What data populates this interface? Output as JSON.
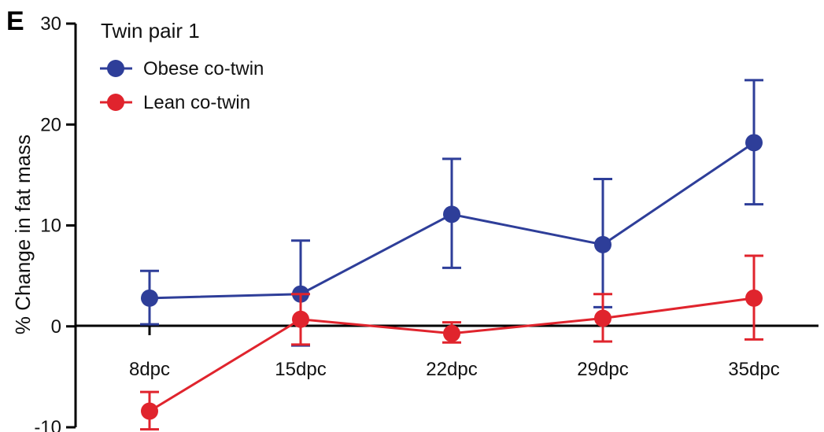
{
  "panel_label": "E",
  "chart_data": {
    "type": "line",
    "legend_title": "Twin pair 1",
    "ylabel": "% Change in fat mass",
    "xlabel": "",
    "categories": [
      "8dpc",
      "15dpc",
      "22dpc",
      "29dpc",
      "35dpc"
    ],
    "ylim": [
      -10,
      30
    ],
    "yticks": [
      -10,
      0,
      10,
      20,
      30
    ],
    "legend_position": "top-left",
    "grid": false,
    "series": [
      {
        "name": "Obese co-twin",
        "color": "#2e3e99",
        "values": [
          2.8,
          3.2,
          11.1,
          8.1,
          18.2
        ],
        "err_upper": [
          5.5,
          8.5,
          16.6,
          14.6,
          24.4
        ],
        "err_lower": [
          0.2,
          -1.9,
          5.8,
          1.9,
          12.1
        ]
      },
      {
        "name": "Lean co-twin",
        "color": "#e0242d",
        "values": [
          -8.4,
          0.7,
          -0.7,
          0.8,
          2.8
        ],
        "err_upper": [
          -6.5,
          3.2,
          0.4,
          3.2,
          7.0
        ],
        "err_lower": [
          -10.2,
          -1.8,
          -1.6,
          -1.5,
          -1.3
        ]
      }
    ]
  }
}
